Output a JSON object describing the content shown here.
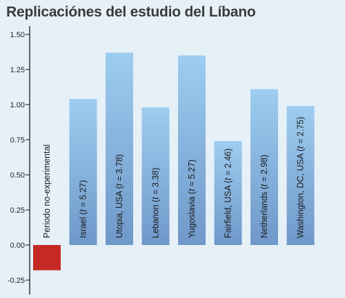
{
  "chart_data": {
    "type": "bar",
    "title": "Replicaciónes del estudio del Líbano",
    "xlabel": "",
    "ylabel": "",
    "ylim": [
      -0.3,
      1.6
    ],
    "y_ticks": [
      "1.50",
      "1.25",
      "1.00",
      "0.75",
      "0.50",
      "0.25",
      "0.00",
      "-0.25"
    ],
    "y_tick_values": [
      1.5,
      1.25,
      1.0,
      0.75,
      0.5,
      0.25,
      0.0,
      -0.25
    ],
    "grid": false,
    "legend": "none",
    "categories": [
      {
        "label": "Periodo no-experimental",
        "pre": "Periodo no-experimental",
        "t": "",
        "post": ""
      },
      {
        "label": "Israel (t = 5.27)",
        "pre": "Israel (",
        "t": "t",
        "post": " = 5.27)"
      },
      {
        "label": "Utopia, USA (t = 3.78)",
        "pre": "Utopia, USA (",
        "t": "t",
        "post": " = 3.78)"
      },
      {
        "label": "Lebanon (t = 3.38)",
        "pre": "Lebanon (",
        "t": "t",
        "post": " = 3.38)"
      },
      {
        "label": "Yugoslavia (t = 5.27)",
        "pre": "Yugoslavia (",
        "t": "t",
        "post": " = 5.27)"
      },
      {
        "label": "Fairfield, USA (t = 2.46)",
        "pre": "Fairfield, USA (",
        "t": "t",
        "post": " = 2.46)"
      },
      {
        "label": "Netherlands (t = 2.98)",
        "pre": "Netherlands (",
        "t": "t",
        "post": " = 2.98)"
      },
      {
        "label": "Washington, DC, USA (t = 2.75)",
        "pre": "Washington, DC, USA (",
        "t": "t",
        "post": " = 2.75)"
      }
    ],
    "values": [
      -0.18,
      1.04,
      1.37,
      0.98,
      1.35,
      0.74,
      1.11,
      0.99
    ],
    "colors": {
      "negative": "#c42a22",
      "positive_top": "#9dcdf0",
      "positive_bottom": "#6f98c9",
      "axis": "#333333",
      "background": "#e6f0f7"
    }
  }
}
